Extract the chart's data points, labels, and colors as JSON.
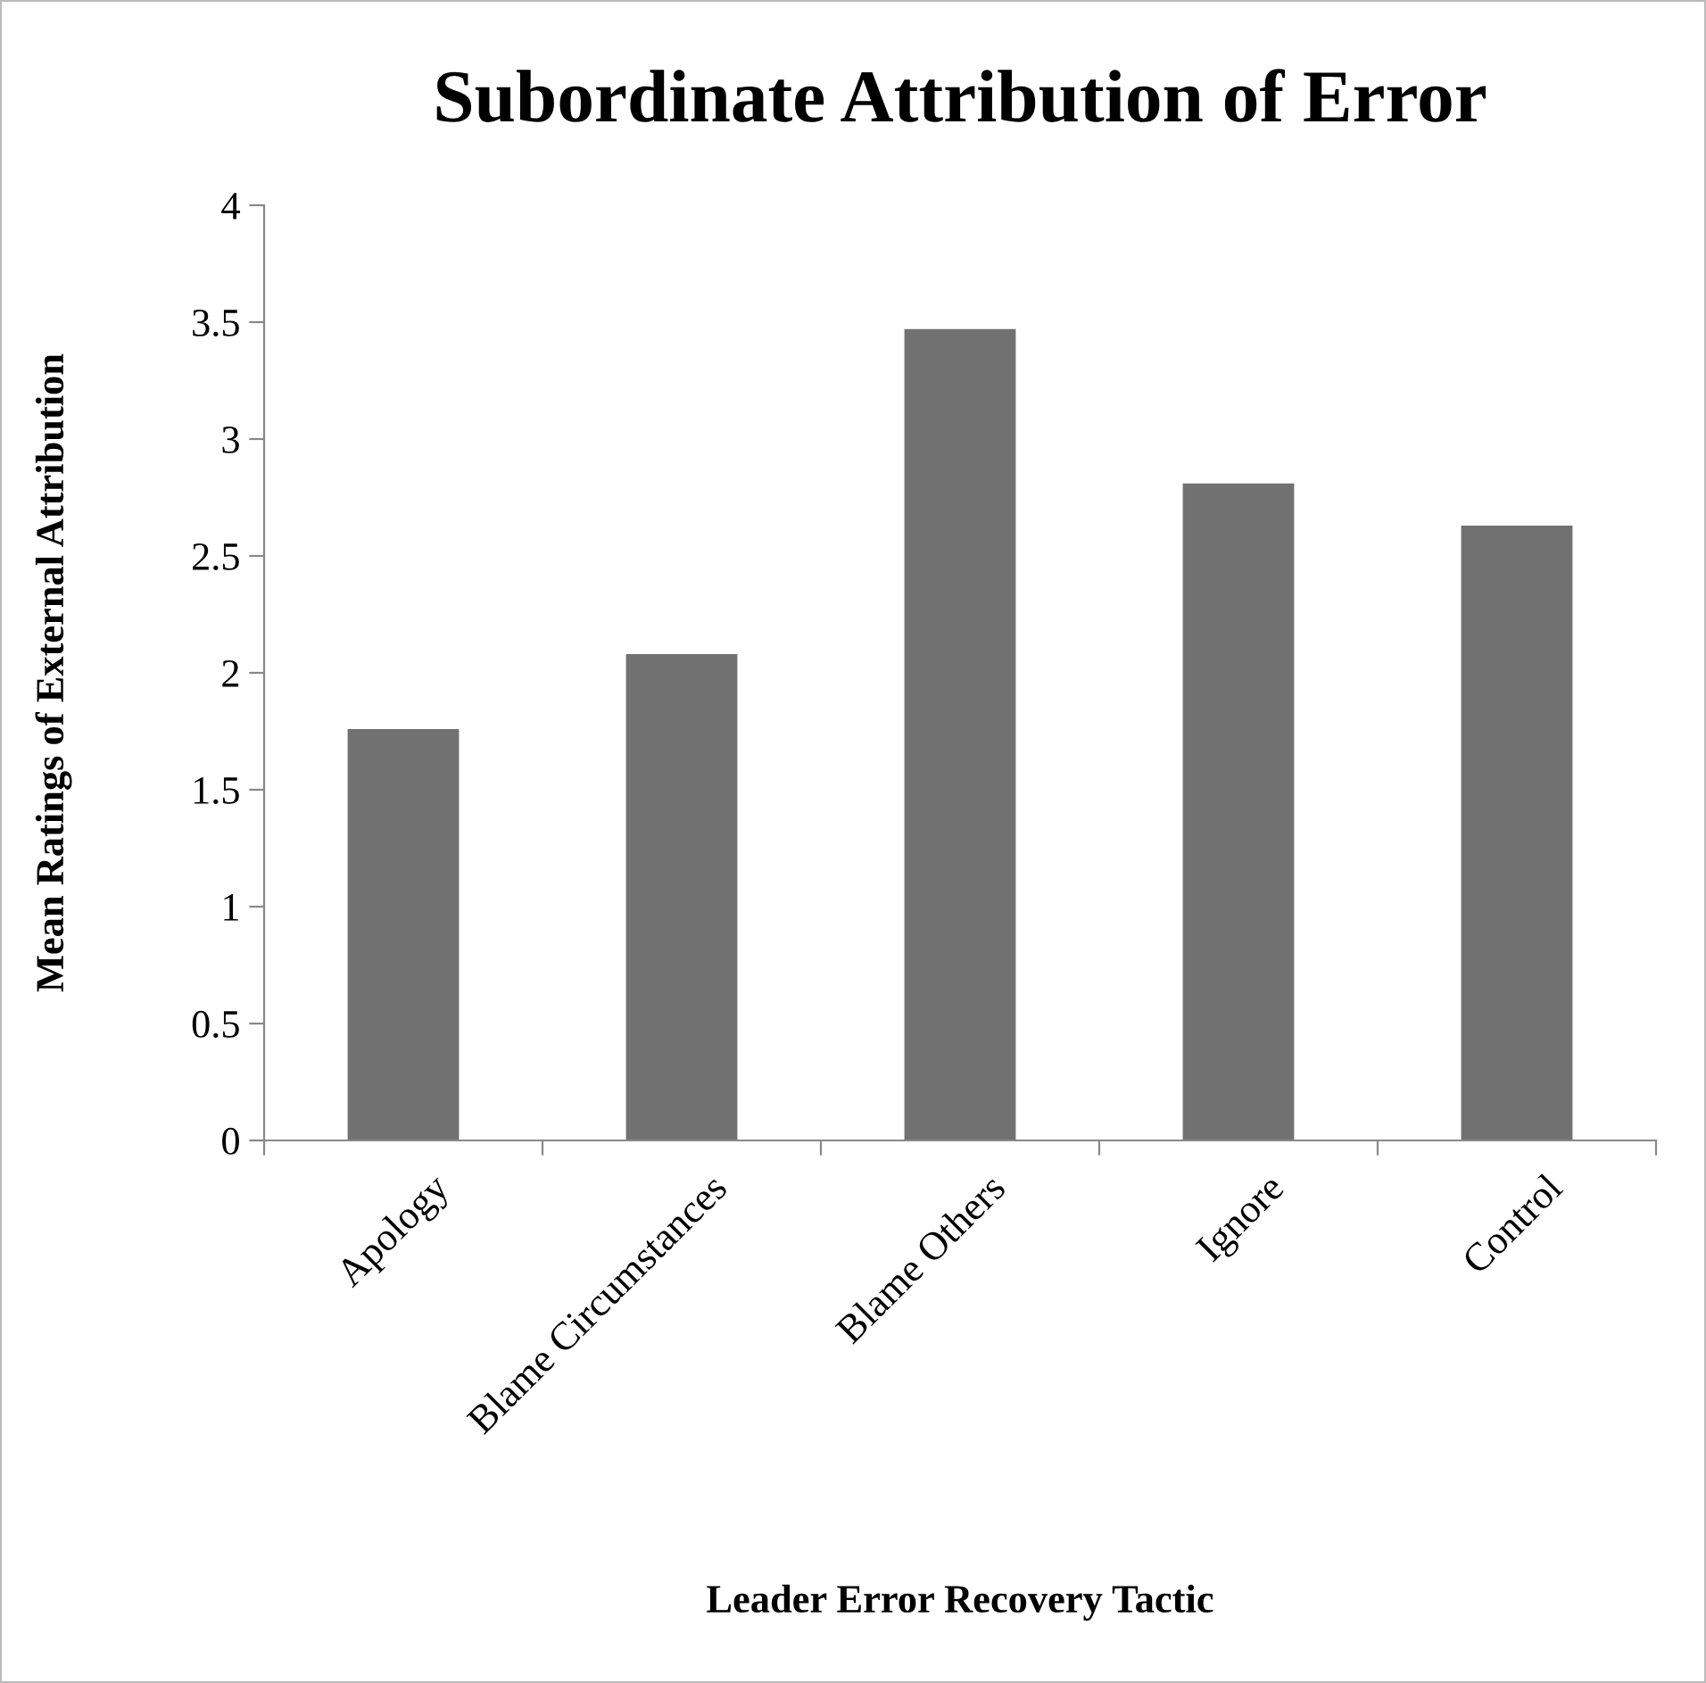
{
  "chart_data": {
    "type": "bar",
    "title": "Subordinate Attribution of Error",
    "xlabel": "Leader Error Recovery Tactic",
    "ylabel": "Mean Ratings of External Attribution",
    "categories": [
      "Apology",
      "Blame Circumstances",
      "Blame Others",
      "Ignore",
      "Control"
    ],
    "values": [
      1.76,
      2.08,
      3.47,
      2.81,
      2.63
    ],
    "color": "#717171",
    "ylim": [
      0,
      4
    ],
    "yticks": [
      0,
      0.5,
      1,
      1.5,
      2,
      2.5,
      3,
      3.5,
      4
    ],
    "grid": false
  }
}
